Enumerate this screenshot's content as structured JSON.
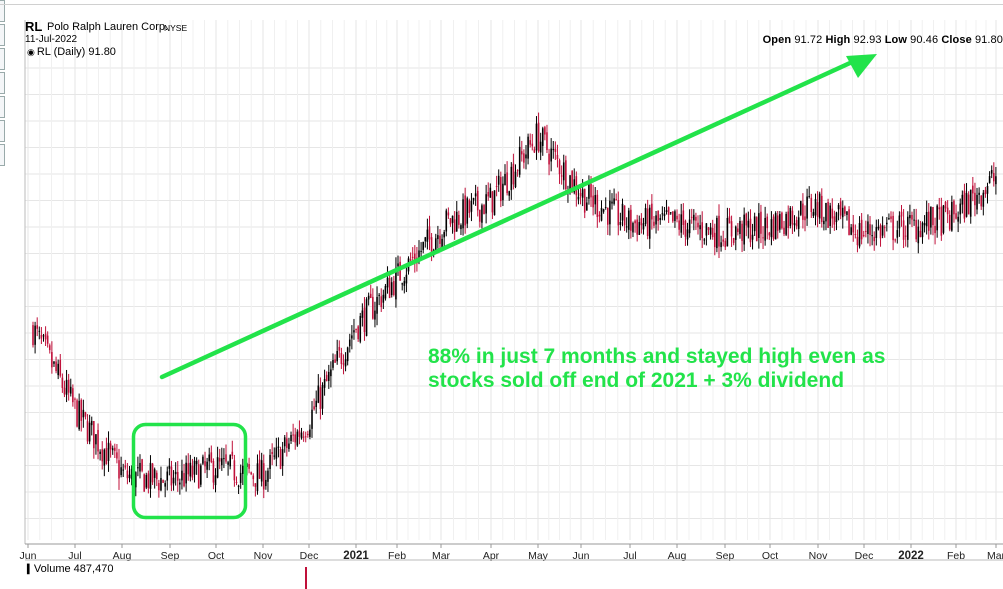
{
  "header": {
    "symbol": "RL",
    "company": "Polo Ralph Lauren Corp.",
    "exchange": "NYSE",
    "date": "11-Jul-2022",
    "open_label": "Open",
    "open": "91.72",
    "high_label": "High",
    "high": "92.93",
    "low_label": "Low",
    "low": "90.46",
    "close_label": "Close",
    "close": "91.80"
  },
  "legend": {
    "text": "RL (Daily) 91.80"
  },
  "volume": {
    "text": "Volume 487,470"
  },
  "annotation": {
    "text": "88% in just 7 months and stayed high even as stocks sold off end of 2021 + 3% dividend"
  },
  "colors": {
    "up": "#000000",
    "down": "#c0103a",
    "annotation": "#22e34a",
    "grid": "#e6e6e6"
  },
  "chart_data": {
    "type": "line",
    "title": "RL (Daily)",
    "x_tick_labels": [
      "Jun",
      "Jul",
      "Aug",
      "Sep",
      "Oct",
      "Nov",
      "Dec",
      "2021",
      "Feb",
      "Mar",
      "Apr",
      "May",
      "Jun",
      "Jul",
      "Aug",
      "Sep",
      "Oct",
      "Nov",
      "Dec",
      "2022",
      "Feb",
      "Mar"
    ],
    "x_ticks_bold": [
      "2021",
      "2022"
    ],
    "x": [
      "2020-06",
      "2020-07",
      "2020-08",
      "2020-09",
      "2020-10",
      "2020-11",
      "2020-12",
      "2021-01",
      "2021-02",
      "2021-03",
      "2021-04",
      "2021-05",
      "2021-06",
      "2021-07",
      "2021-08",
      "2021-09",
      "2021-10",
      "2021-11",
      "2021-12",
      "2022-01",
      "2022-02",
      "2022-03"
    ],
    "series": [
      {
        "values": [
          0.45,
          0.26,
          0.13,
          0.12,
          0.15,
          0.13,
          0.25,
          0.45,
          0.57,
          0.68,
          0.73,
          0.87,
          0.74,
          0.68,
          0.68,
          0.66,
          0.67,
          0.72,
          0.66,
          0.67,
          0.69,
          0.78
        ]
      }
    ],
    "grid": true,
    "annotations": [
      {
        "type": "arrow",
        "label": "88% in just 7 months and stayed high even as stocks sold off end of 2021 + 3% dividend"
      },
      {
        "type": "box"
      }
    ]
  }
}
